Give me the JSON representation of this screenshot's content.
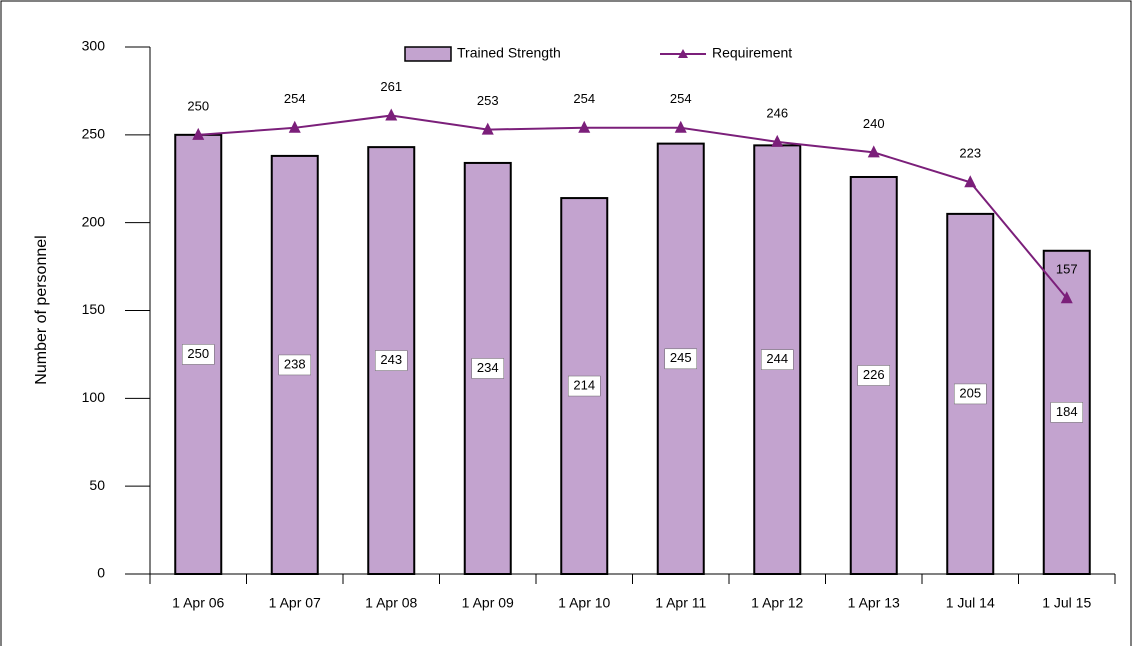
{
  "chart_data": {
    "type": "bar_line",
    "y_axis_label": "Number of personnel",
    "categories": [
      "1 Apr 06",
      "1 Apr 07",
      "1 Apr 08",
      "1 Apr 09",
      "1 Apr 10",
      "1 Apr 11",
      "1 Apr 12",
      "1 Apr 13",
      "1 Jul 14",
      "1 Jul 15"
    ],
    "series": [
      {
        "name": "Trained Strength",
        "type": "bar",
        "color": "#c3a3cf",
        "values": [
          250,
          238,
          243,
          234,
          214,
          245,
          244,
          226,
          205,
          184
        ]
      },
      {
        "name": "Requirement",
        "type": "line",
        "color": "#7b1f7a",
        "values": [
          250,
          254,
          261,
          253,
          254,
          254,
          246,
          240,
          223,
          157
        ]
      }
    ],
    "ylim": [
      0,
      300
    ],
    "yticks": [
      0,
      50,
      100,
      150,
      200,
      250,
      300
    ],
    "legend": "top"
  }
}
